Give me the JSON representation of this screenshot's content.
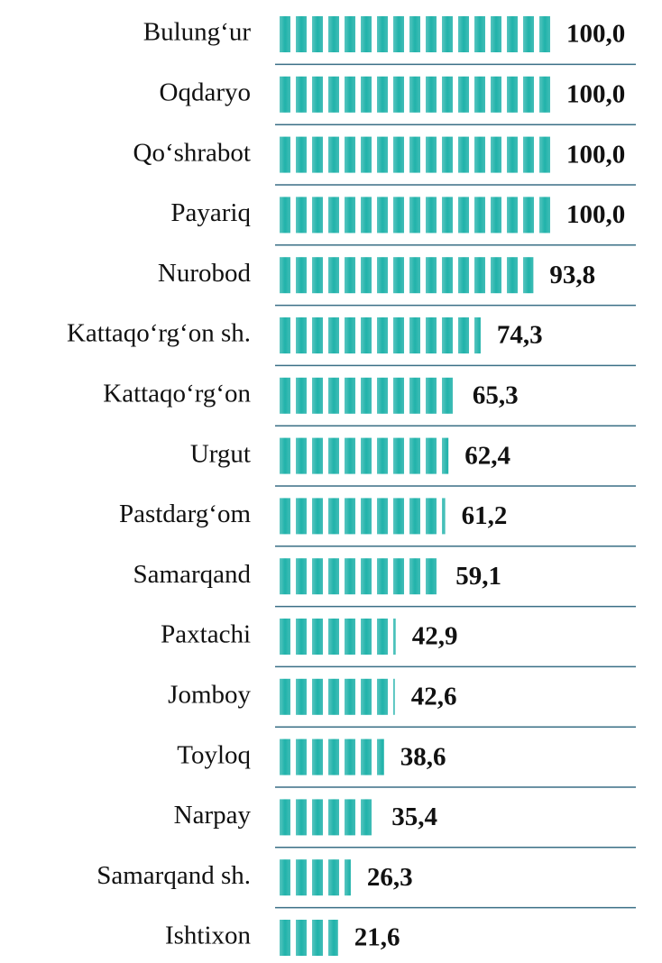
{
  "chart_data": {
    "type": "bar",
    "orientation": "horizontal",
    "categories": [
      "Bulung‘ur",
      "Oqdaryo",
      "Qo‘shrabot",
      "Payariq",
      "Nurobod",
      "Kattaqo‘rg‘on sh.",
      "Kattaqo‘rg‘on",
      "Urgut",
      "Pastdarg‘om",
      "Samarqand",
      "Paxtachi",
      "Jomboy",
      "Toyloq",
      "Narpay",
      "Samarqand sh.",
      "Ishtixon"
    ],
    "values": [
      100,
      100,
      100,
      100,
      93.8,
      74.3,
      65.3,
      62.4,
      61.2,
      59.1,
      42.9,
      42.6,
      38.6,
      35.4,
      26.3,
      21.6
    ],
    "value_labels": [
      "100,0",
      "100,0",
      "100,0",
      "100,0",
      "93,8",
      "74,3",
      "65,3",
      "62,4",
      "61,2",
      "59,1",
      "42,9",
      "42,6",
      "38,6",
      "35,4",
      "26,3",
      "21,6"
    ],
    "color": "#20b2aa"
  }
}
